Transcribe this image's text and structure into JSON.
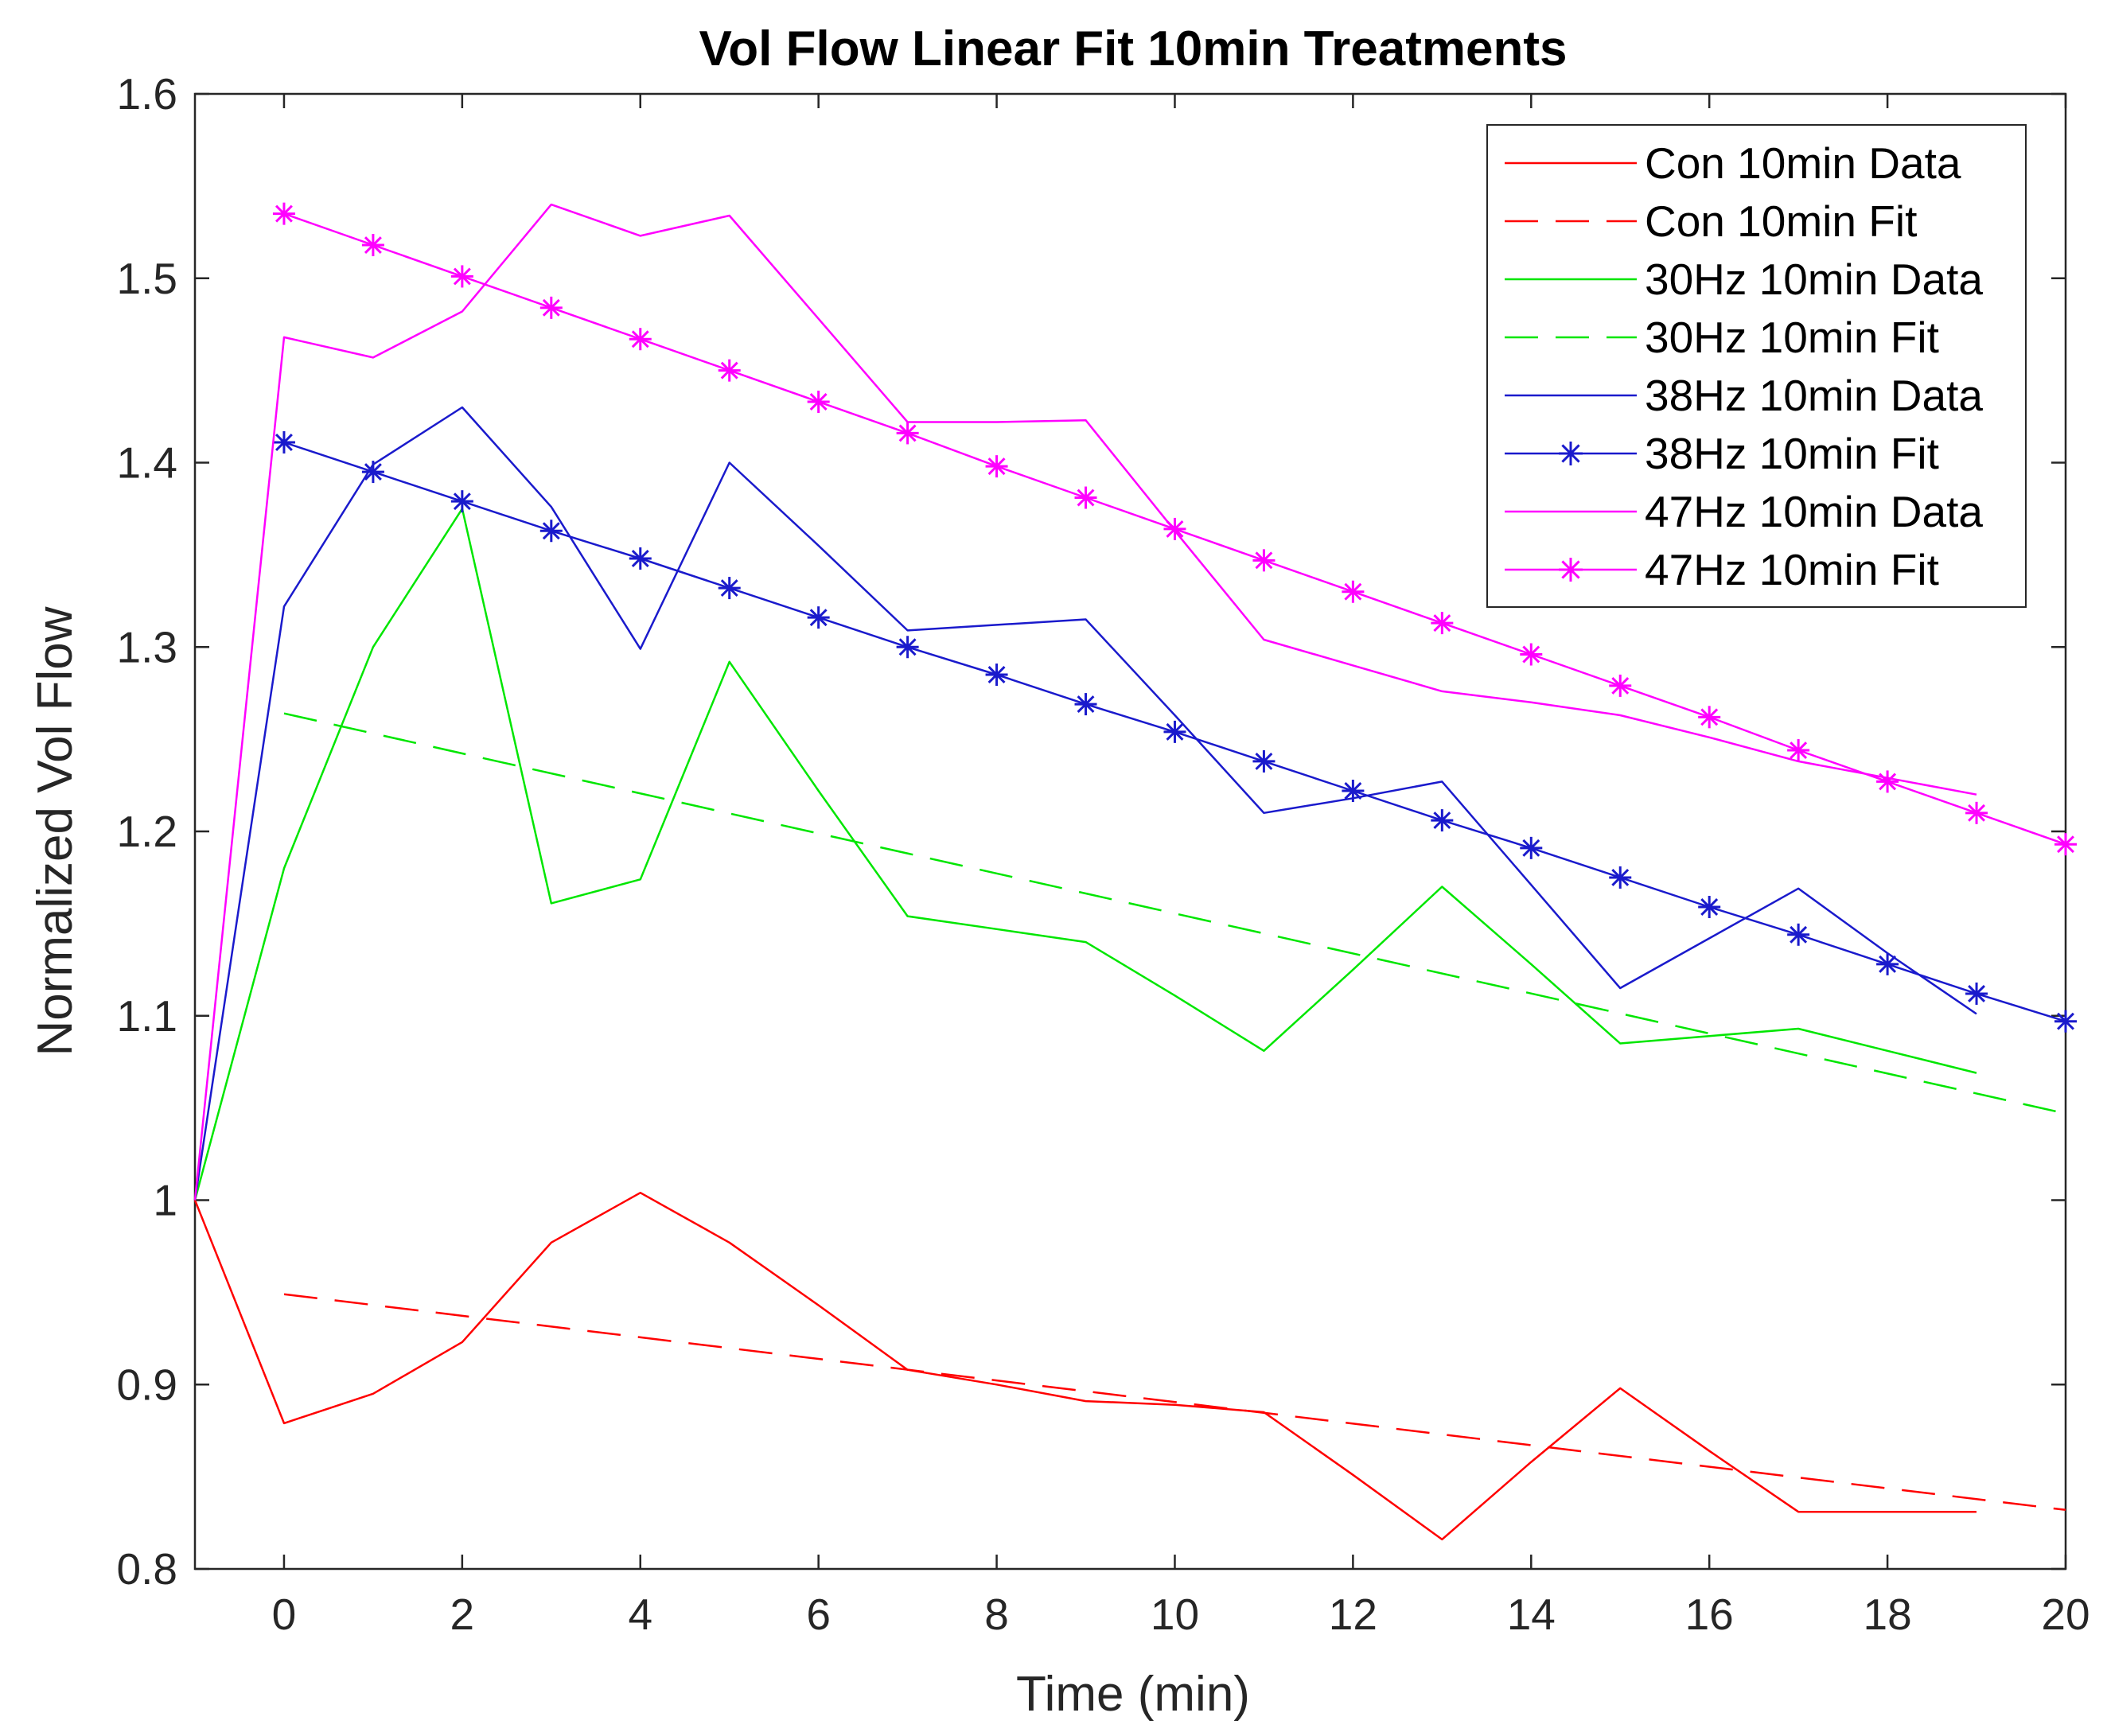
{
  "chart_data": {
    "type": "line",
    "title": "Vol Flow Linear Fit 10min Treatments",
    "xlabel": "Time (min)",
    "ylabel": "Normalized Vol Flow",
    "xlim": [
      -1,
      20
    ],
    "ylim": [
      0.8,
      1.6
    ],
    "xticks": [
      0,
      2,
      4,
      6,
      8,
      10,
      12,
      14,
      16,
      18,
      20
    ],
    "yticks": [
      0.8,
      0.9,
      1,
      1.1,
      1.2,
      1.3,
      1.4,
      1.5,
      1.6
    ],
    "xtick_labels": [
      "0",
      "2",
      "4",
      "6",
      "8",
      "10",
      "12",
      "14",
      "16",
      "18",
      "20"
    ],
    "ytick_labels": [
      "0.8",
      "0.9",
      "1",
      "1.1",
      "1.2",
      "1.3",
      "1.4",
      "1.5",
      "1.6"
    ],
    "grid": false,
    "legend_position": "top-right",
    "series": [
      {
        "name": "Con 10min Data",
        "color": "#ff0000",
        "style": "solid",
        "marker": "none",
        "x": [
          -1,
          0,
          1,
          2,
          3,
          4,
          5,
          6,
          7,
          8,
          9,
          10,
          11,
          12,
          13,
          14,
          15,
          16,
          17,
          18,
          19
        ],
        "y": [
          1.0,
          0.879,
          0.895,
          0.923,
          0.977,
          1.004,
          0.977,
          0.943,
          0.908,
          0.9,
          0.891,
          0.889,
          0.885,
          0.851,
          0.816,
          0.858,
          0.898,
          0.864,
          0.831,
          0.831,
          0.831
        ]
      },
      {
        "name": "Con 10min Fit",
        "color": "#ff0000",
        "style": "dashed",
        "marker": "none",
        "x": [
          0,
          20
        ],
        "y": [
          0.949,
          0.832
        ]
      },
      {
        "name": "30Hz 10min Data",
        "color": "#00e600",
        "style": "solid",
        "marker": "none",
        "x": [
          -1,
          0,
          1,
          2,
          3,
          4,
          5,
          6,
          7,
          8,
          9,
          10,
          11,
          12,
          13,
          14,
          15,
          16,
          17,
          18,
          19
        ],
        "y": [
          1.0,
          1.18,
          1.3,
          1.375,
          1.161,
          1.174,
          1.292,
          1.222,
          1.154,
          1.147,
          1.14,
          1.111,
          1.081,
          1.125,
          1.17,
          1.128,
          1.085,
          1.089,
          1.093,
          1.081,
          1.069
        ]
      },
      {
        "name": "30Hz 10min Fit",
        "color": "#00e600",
        "style": "dashed",
        "marker": "none",
        "x": [
          0,
          20
        ],
        "y": [
          1.264,
          1.047
        ]
      },
      {
        "name": "38Hz 10min Data",
        "color": "#1a1acc",
        "style": "solid",
        "marker": "none",
        "x": [
          -1,
          0,
          1,
          2,
          3,
          4,
          5,
          6,
          7,
          8,
          9,
          10,
          11,
          12,
          13,
          14,
          15,
          16,
          17,
          18,
          19
        ],
        "y": [
          1.0,
          1.322,
          1.399,
          1.43,
          1.376,
          1.299,
          1.4,
          1.355,
          1.309,
          1.312,
          1.315,
          1.263,
          1.21,
          1.218,
          1.227,
          1.171,
          1.115,
          1.142,
          1.169,
          1.134,
          1.101
        ]
      },
      {
        "name": "38Hz 10min Fit",
        "color": "#1a1acc",
        "style": "solid",
        "marker": "star",
        "x": [
          0,
          1,
          2,
          3,
          4,
          5,
          6,
          7,
          8,
          9,
          10,
          11,
          12,
          13,
          14,
          15,
          16,
          17,
          18,
          19,
          20
        ],
        "y": [
          1.411,
          1.395,
          1.379,
          1.363,
          1.348,
          1.332,
          1.316,
          1.3,
          1.285,
          1.269,
          1.254,
          1.238,
          1.222,
          1.206,
          1.191,
          1.175,
          1.159,
          1.144,
          1.128,
          1.112,
          1.097
        ]
      },
      {
        "name": "47Hz 10min Data",
        "color": "#ff00ff",
        "style": "solid",
        "marker": "none",
        "x": [
          -1,
          0,
          1,
          2,
          3,
          4,
          5,
          6,
          7,
          8,
          9,
          10,
          11,
          12,
          13,
          14,
          15,
          16,
          17,
          18,
          19
        ],
        "y": [
          1.0,
          1.468,
          1.457,
          1.482,
          1.54,
          1.523,
          1.534,
          1.478,
          1.422,
          1.422,
          1.423,
          1.363,
          1.304,
          1.29,
          1.276,
          1.27,
          1.263,
          1.251,
          1.238,
          1.229,
          1.22
        ]
      },
      {
        "name": "47Hz 10min Fit",
        "color": "#ff00ff",
        "style": "solid",
        "marker": "star",
        "x": [
          0,
          1,
          2,
          3,
          4,
          5,
          6,
          7,
          8,
          9,
          10,
          11,
          12,
          13,
          14,
          15,
          16,
          17,
          18,
          19,
          20
        ],
        "y": [
          1.535,
          1.518,
          1.501,
          1.484,
          1.467,
          1.45,
          1.433,
          1.416,
          1.398,
          1.381,
          1.364,
          1.347,
          1.33,
          1.313,
          1.296,
          1.279,
          1.262,
          1.244,
          1.227,
          1.21,
          1.193
        ]
      }
    ]
  }
}
